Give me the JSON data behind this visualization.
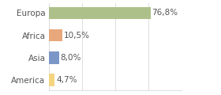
{
  "categories": [
    "America",
    "Asia",
    "Africa",
    "Europa"
  ],
  "values": [
    4.7,
    8.0,
    10.5,
    76.8
  ],
  "labels": [
    "4,7%",
    "8,0%",
    "10,5%",
    "76,8%"
  ],
  "bar_colors": [
    "#f2d57e",
    "#7b97c7",
    "#e8a87c",
    "#adc08a"
  ],
  "background_color": "#ffffff",
  "xlim": [
    0,
    100
  ],
  "bar_height": 0.55,
  "label_fontsize": 7.5,
  "tick_fontsize": 7.5,
  "grid_color": "#dddddd",
  "text_color": "#555555"
}
